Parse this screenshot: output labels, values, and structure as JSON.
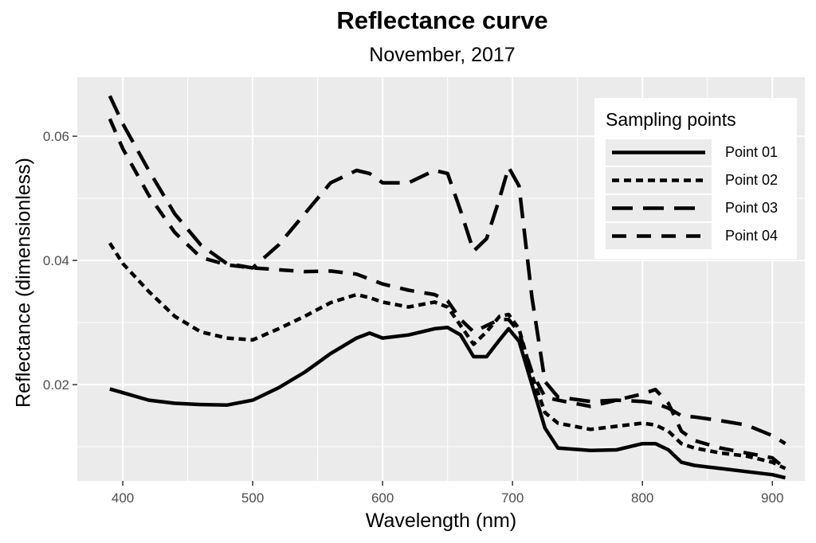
{
  "chart_data": {
    "type": "line",
    "title": "Reflectance curve",
    "subtitle": "November, 2017",
    "xlabel": "Wavelength (nm)",
    "ylabel": "Reflectance (dimensionless)",
    "xlim": [
      365,
      925
    ],
    "ylim": [
      0.0045,
      0.0695
    ],
    "x_ticks": [
      400,
      500,
      600,
      700,
      800,
      900
    ],
    "y_ticks": [
      0.02,
      0.04,
      0.06
    ],
    "x_tick_labels": [
      "400",
      "500",
      "600",
      "700",
      "800",
      "900"
    ],
    "y_tick_labels": [
      "0.02",
      "0.04",
      "0.06"
    ],
    "grid": true,
    "legend_title": "Sampling points",
    "legend_position": "top-right",
    "colors": {
      "panel": "#ebebeb",
      "grid": "#ffffff",
      "line": "#000000",
      "tick_text": "#4d4d4d"
    },
    "series": [
      {
        "name": "Point 01",
        "linestyle": "solid",
        "x": [
          390,
          400,
          420,
          440,
          460,
          480,
          500,
          520,
          540,
          560,
          580,
          590,
          600,
          620,
          640,
          650,
          660,
          670,
          680,
          690,
          697,
          705,
          715,
          725,
          735,
          760,
          780,
          800,
          810,
          820,
          830,
          840,
          860,
          880,
          900,
          910
        ],
        "y": [
          0.0193,
          0.0187,
          0.0175,
          0.017,
          0.0168,
          0.0167,
          0.0175,
          0.0195,
          0.022,
          0.025,
          0.0275,
          0.0283,
          0.0275,
          0.028,
          0.029,
          0.0292,
          0.028,
          0.0245,
          0.0245,
          0.0272,
          0.029,
          0.027,
          0.02,
          0.013,
          0.0098,
          0.0094,
          0.0095,
          0.0105,
          0.0105,
          0.0095,
          0.0075,
          0.007,
          0.0065,
          0.006,
          0.0055,
          0.005
        ]
      },
      {
        "name": "Point 02",
        "linestyle": "dotted",
        "x": [
          390,
          400,
          420,
          440,
          460,
          480,
          500,
          520,
          540,
          560,
          580,
          590,
          600,
          620,
          640,
          650,
          660,
          670,
          680,
          690,
          697,
          705,
          715,
          725,
          735,
          760,
          780,
          800,
          810,
          820,
          830,
          840,
          860,
          880,
          900,
          910
        ],
        "y": [
          0.0428,
          0.0395,
          0.035,
          0.031,
          0.0285,
          0.0275,
          0.0272,
          0.029,
          0.031,
          0.0332,
          0.0345,
          0.034,
          0.0333,
          0.0325,
          0.0333,
          0.0325,
          0.0295,
          0.0265,
          0.0285,
          0.031,
          0.0313,
          0.029,
          0.0215,
          0.0155,
          0.0138,
          0.0128,
          0.0133,
          0.0138,
          0.0135,
          0.0125,
          0.0105,
          0.0098,
          0.009,
          0.0085,
          0.0075,
          0.0065
        ]
      },
      {
        "name": "Point 03",
        "linestyle": "long-dash",
        "x": [
          390,
          400,
          420,
          440,
          460,
          480,
          500,
          520,
          540,
          560,
          580,
          590,
          600,
          620,
          640,
          650,
          660,
          670,
          680,
          690,
          697,
          705,
          715,
          725,
          735,
          760,
          780,
          800,
          810,
          820,
          830,
          840,
          860,
          880,
          900,
          910
        ],
        "y": [
          0.0665,
          0.062,
          0.0545,
          0.0475,
          0.0425,
          0.0395,
          0.0388,
          0.0425,
          0.0475,
          0.0525,
          0.0545,
          0.054,
          0.0525,
          0.0525,
          0.0545,
          0.054,
          0.048,
          0.0415,
          0.0435,
          0.05,
          0.055,
          0.052,
          0.034,
          0.0205,
          0.018,
          0.0173,
          0.0175,
          0.0173,
          0.017,
          0.0162,
          0.015,
          0.0148,
          0.0142,
          0.0135,
          0.0118,
          0.0105
        ]
      },
      {
        "name": "Point 04",
        "linestyle": "dashed",
        "x": [
          390,
          400,
          420,
          440,
          460,
          480,
          500,
          520,
          540,
          560,
          580,
          590,
          600,
          620,
          640,
          650,
          660,
          670,
          680,
          690,
          697,
          705,
          715,
          725,
          735,
          760,
          780,
          800,
          810,
          820,
          830,
          840,
          860,
          880,
          900,
          910
        ],
        "y": [
          0.0628,
          0.058,
          0.0505,
          0.0445,
          0.0405,
          0.0393,
          0.0388,
          0.0385,
          0.0382,
          0.0383,
          0.0378,
          0.037,
          0.0362,
          0.0352,
          0.0345,
          0.0335,
          0.0305,
          0.0285,
          0.0295,
          0.0305,
          0.0305,
          0.0285,
          0.022,
          0.018,
          0.0175,
          0.0165,
          0.0175,
          0.0185,
          0.0192,
          0.017,
          0.0125,
          0.011,
          0.0098,
          0.009,
          0.0082,
          0.0065
        ]
      }
    ]
  }
}
